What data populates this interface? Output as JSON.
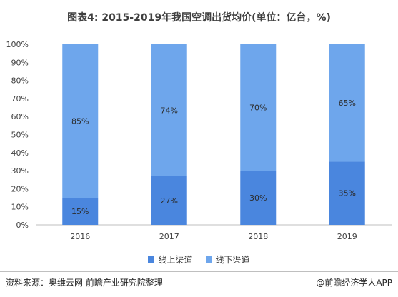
{
  "title": "图表4: 2015-2019年我国空调出货均价(单位：亿台，%)",
  "source": "资料来源：奥维云网 前瞻产业研究院整理",
  "brand": "@前瞻经济学人APP",
  "colors": {
    "online": "#4a86de",
    "offline": "#6ea6ec",
    "grid": "#d9d9d9",
    "axis": "#bfbfbf",
    "label": "#404040"
  },
  "chart_data": {
    "type": "bar",
    "stacked": true,
    "categories": [
      "2016",
      "2017",
      "2018",
      "2019"
    ],
    "series": [
      {
        "name": "线上渠道",
        "values": [
          15,
          27,
          30,
          35
        ],
        "labels": [
          "15%",
          "27%",
          "30%",
          "35%"
        ]
      },
      {
        "name": "线下渠道",
        "values": [
          85,
          74,
          70,
          65
        ],
        "labels": [
          "85%",
          "74%",
          "70%",
          "65%"
        ]
      }
    ],
    "yticks": [
      "0%",
      "10%",
      "20%",
      "30%",
      "40%",
      "50%",
      "60%",
      "70%",
      "80%",
      "90%",
      "100%"
    ],
    "ylim": [
      0,
      100
    ],
    "legend": "bottom",
    "grid": false
  }
}
